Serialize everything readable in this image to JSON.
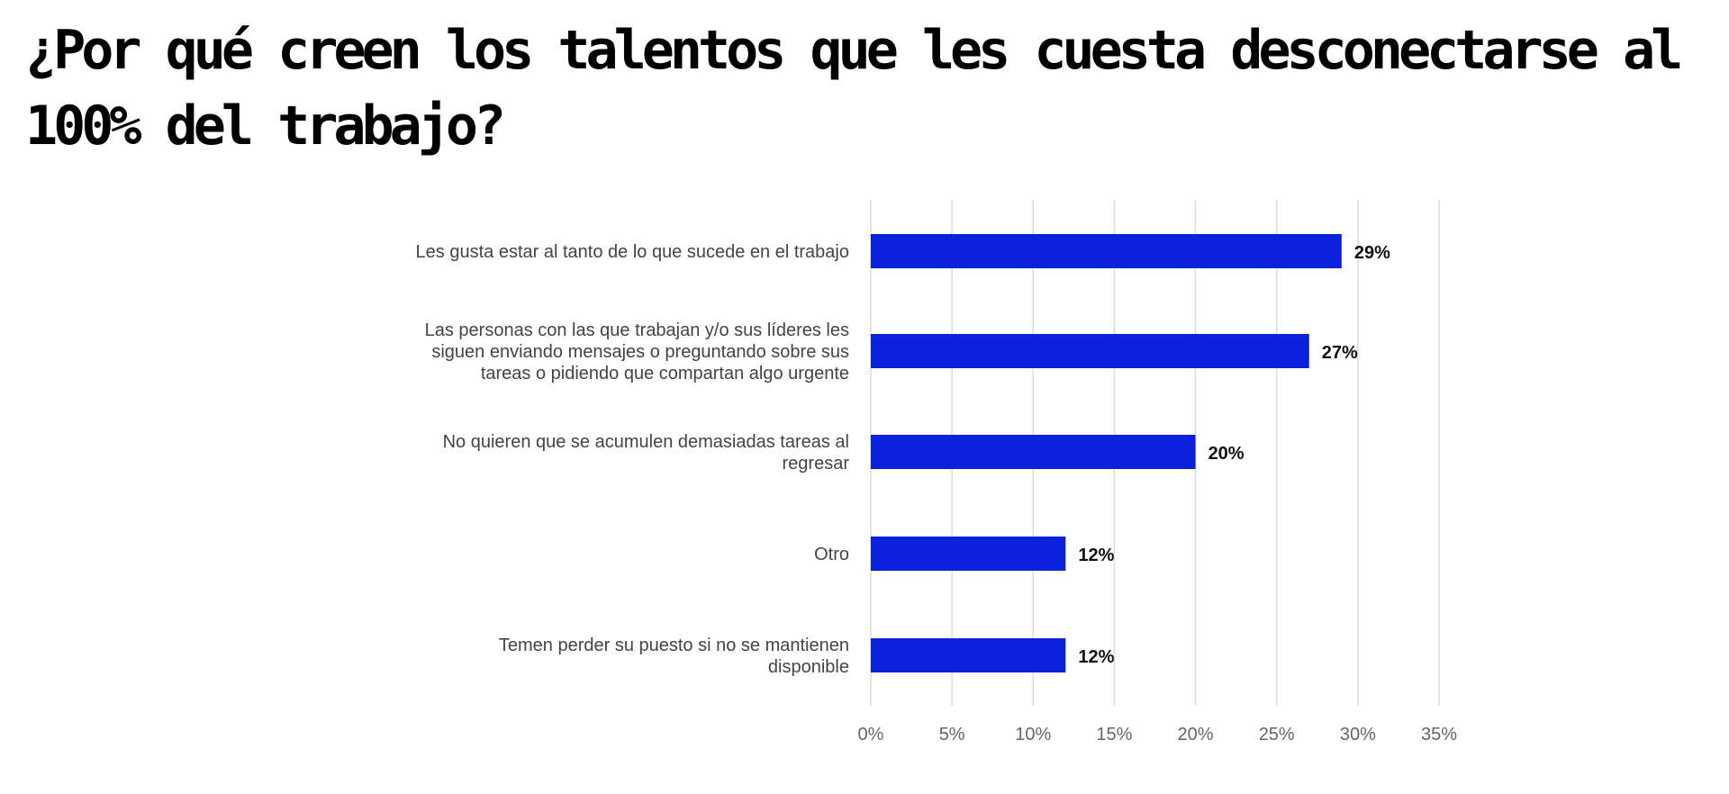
{
  "chart_data": {
    "type": "bar",
    "orientation": "horizontal",
    "title": "¿Por qué creen los talentos que les cuesta desconectarse al 100% del trabajo?",
    "categories": [
      [
        "Les gusta estar al tanto de lo que sucede en el trabajo"
      ],
      [
        "Las personas con las que trabajan y/o sus líderes les",
        "siguen enviando mensajes o preguntando sobre sus",
        "tareas o pidiendo que  compartan algo urgente"
      ],
      [
        "No quieren que se acumulen demasiadas tareas al",
        "regresar"
      ],
      [
        "Otro"
      ],
      [
        "Temen perder su puesto si no se mantienen",
        "disponible"
      ]
    ],
    "values": [
      29,
      27,
      20,
      12,
      12
    ],
    "data_labels": [
      "29%",
      "27%",
      "20%",
      "12%",
      "12%"
    ],
    "xlim": [
      0,
      35
    ],
    "x_ticks": [
      0,
      5,
      10,
      15,
      20,
      25,
      30,
      35
    ],
    "x_tick_labels": [
      "0%",
      "5%",
      "10%",
      "15%",
      "20%",
      "25%",
      "30%",
      "35%"
    ],
    "grid": "vertical",
    "bar_color": "#0a22dc",
    "xlabel": "",
    "ylabel": ""
  }
}
